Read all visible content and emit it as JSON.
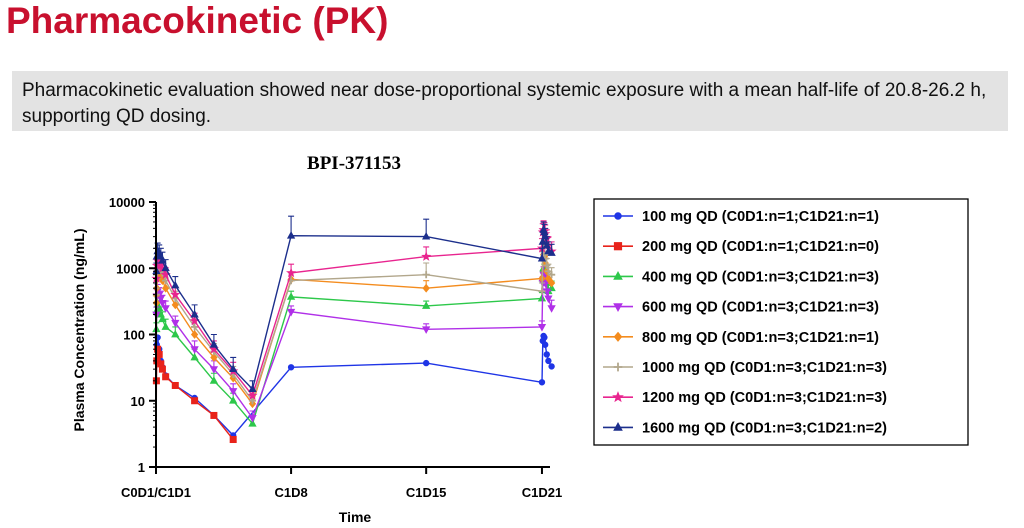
{
  "page": {
    "title": "Pharmacokinetic (PK)",
    "summary": "Pharmacokinetic evaluation showed near dose-proportional systemic exposure with a mean half-life of 20.8-26.2 h, supporting QD dosing."
  },
  "chart_data": {
    "type": "line",
    "title": "BPI-371153",
    "xlabel": "Time",
    "ylabel": "Plasma Concentration (ng/mL)",
    "yscale": "log",
    "ylim": [
      1,
      10000
    ],
    "y_ticks": [
      {
        "value": 1,
        "label": "1"
      },
      {
        "value": 10,
        "label": "10"
      },
      {
        "value": 100,
        "label": "100"
      },
      {
        "value": 1000,
        "label": "1000"
      },
      {
        "value": 10000,
        "label": "10000"
      }
    ],
    "x_unit": "hours",
    "xlim": [
      0,
      490
    ],
    "x_ticks": [
      {
        "value": 0,
        "label": "C0D1/C1D1"
      },
      {
        "value": 168,
        "label": "C1D8"
      },
      {
        "value": 336,
        "label": "C1D15"
      },
      {
        "value": 480,
        "label": "C1D21"
      }
    ],
    "legend_position": "right",
    "series": [
      {
        "name": "100 mg QD (C0D1:n=1;C1D21:n=1)",
        "color": "#1f35e6",
        "marker": "circle",
        "x": [
          0,
          0.5,
          1,
          2,
          4,
          6,
          8,
          12,
          24,
          48,
          72,
          96,
          168,
          336,
          480,
          481,
          482,
          483,
          484,
          486,
          488,
          492
        ],
        "y": [
          1,
          40,
          70,
          90,
          60,
          40,
          32,
          24,
          17,
          11,
          6,
          3,
          32,
          37,
          19,
          80,
          95,
          90,
          70,
          50,
          40,
          33
        ]
      },
      {
        "name": "200 mg QD (C0D1:n=1;C1D21:n=0)",
        "color": "#e8231b",
        "marker": "square",
        "x": [
          0,
          0.5,
          1,
          2,
          4,
          6,
          8,
          12,
          24,
          48,
          72,
          96
        ],
        "y": [
          1,
          20,
          40,
          60,
          50,
          36,
          30,
          23,
          17,
          10,
          6,
          2.6
        ]
      },
      {
        "name": "400 mg QD (C0D1:n=3;C1D21:n=3)",
        "color": "#2dc84a",
        "marker": "triangle",
        "x": [
          0,
          0.5,
          1,
          2,
          4,
          6,
          8,
          12,
          24,
          48,
          72,
          96,
          120,
          168,
          336,
          480,
          481,
          482,
          483,
          484,
          486,
          488,
          492
        ],
        "y": [
          1,
          120,
          230,
          280,
          250,
          200,
          170,
          130,
          100,
          45,
          20,
          10,
          4.5,
          370,
          270,
          350,
          700,
          1000,
          900,
          800,
          600,
          450,
          500
        ],
        "err": [
          0,
          30,
          60,
          80,
          70,
          60,
          50,
          40,
          30,
          15,
          6,
          3,
          1.5,
          80,
          50,
          80,
          200,
          300,
          250,
          200,
          150,
          120,
          140
        ]
      },
      {
        "name": "600 mg QD (C0D1:n=3;C1D21:n=3)",
        "color": "#b030e8",
        "marker": "triangle-down",
        "x": [
          0,
          0.5,
          1,
          2,
          4,
          6,
          8,
          12,
          24,
          48,
          72,
          96,
          120,
          168,
          336,
          480,
          481,
          482,
          483,
          484,
          486,
          488,
          492
        ],
        "y": [
          1,
          200,
          380,
          450,
          400,
          350,
          300,
          250,
          150,
          60,
          30,
          14,
          5.5,
          220,
          120,
          130,
          600,
          800,
          700,
          600,
          450,
          350,
          250
        ],
        "err": [
          0,
          60,
          100,
          120,
          110,
          100,
          90,
          70,
          40,
          20,
          10,
          4,
          1.5,
          50,
          25,
          30,
          150,
          250,
          200,
          180,
          140,
          110,
          80
        ]
      },
      {
        "name": "800 mg QD (C0D1:n=3;C1D21:n=1)",
        "color": "#f48c1e",
        "marker": "diamond",
        "x": [
          0,
          0.5,
          1,
          2,
          4,
          6,
          8,
          12,
          24,
          48,
          72,
          96,
          120,
          168,
          336,
          480,
          481,
          482,
          483,
          484,
          486,
          488,
          492
        ],
        "y": [
          1,
          300,
          500,
          700,
          800,
          750,
          650,
          500,
          280,
          100,
          45,
          22,
          9,
          680,
          500,
          700,
          1400,
          1600,
          1500,
          1200,
          900,
          700,
          600
        ],
        "err": [
          0,
          80,
          150,
          200,
          220,
          200,
          180,
          150,
          80,
          30,
          15,
          7,
          3,
          200,
          150,
          0,
          0,
          0,
          0,
          0,
          0,
          0,
          0
        ]
      },
      {
        "name": "1000 mg QD (C0D1:n=3;C1D21:n=3)",
        "color": "#b2a78c",
        "marker": "plus",
        "x": [
          0,
          0.5,
          1,
          2,
          4,
          6,
          8,
          12,
          24,
          48,
          72,
          96,
          120,
          168,
          336,
          480,
          481,
          482,
          483,
          484,
          486,
          488,
          492
        ],
        "y": [
          1,
          400,
          700,
          900,
          1000,
          950,
          850,
          650,
          350,
          130,
          55,
          25,
          10,
          650,
          800,
          450,
          1400,
          1800,
          1600,
          1400,
          1100,
          900,
          800
        ],
        "err": [
          0,
          100,
          200,
          250,
          300,
          280,
          250,
          200,
          100,
          40,
          18,
          8,
          3,
          200,
          400,
          150,
          400,
          500,
          450,
          400,
          300,
          250,
          220
        ]
      },
      {
        "name": "1200 mg QD (C0D1:n=3;C1D21:n=3)",
        "color": "#e8258f",
        "marker": "star",
        "x": [
          0,
          0.5,
          1,
          2,
          4,
          6,
          8,
          12,
          24,
          48,
          72,
          96,
          120,
          168,
          336,
          480,
          481,
          482,
          483,
          484,
          486,
          488,
          492
        ],
        "y": [
          1,
          700,
          1100,
          1300,
          1200,
          1100,
          1000,
          800,
          400,
          160,
          60,
          28,
          12,
          850,
          1500,
          2000,
          3500,
          3800,
          3600,
          3300,
          2800,
          2200,
          1800
        ],
        "err": [
          0,
          200,
          300,
          400,
          350,
          300,
          280,
          220,
          120,
          50,
          20,
          10,
          4,
          300,
          600,
          800,
          1200,
          1400,
          1300,
          1200,
          1000,
          800,
          700
        ]
      },
      {
        "name": "1600 mg QD (C0D1:n=3;C1D21:n=2)",
        "color": "#1c2f8c",
        "marker": "triangle",
        "x": [
          0,
          0.5,
          1,
          2,
          4,
          6,
          8,
          12,
          24,
          48,
          72,
          96,
          120,
          168,
          336,
          480,
          481,
          482,
          483,
          484,
          486,
          488,
          492
        ],
        "y": [
          1,
          900,
          1500,
          1800,
          1700,
          1500,
          1300,
          1000,
          550,
          200,
          70,
          30,
          15,
          3100,
          3000,
          1400,
          2500,
          3800,
          3500,
          3000,
          2200,
          1800,
          1700
        ],
        "err": [
          0,
          300,
          500,
          600,
          550,
          500,
          450,
          350,
          200,
          80,
          30,
          15,
          5,
          3000,
          2500,
          600,
          1000,
          1200,
          1100,
          1000,
          800,
          700,
          600
        ]
      }
    ]
  }
}
